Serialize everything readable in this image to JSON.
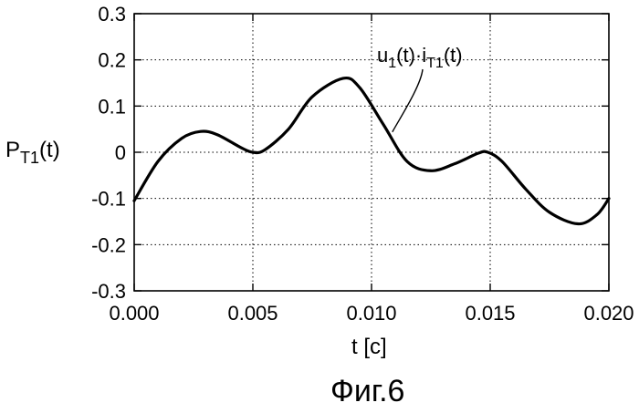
{
  "chart_data": {
    "type": "line",
    "xlabel_main": "t",
    "xlabel_unit": "[c]",
    "ylabel_main": "P",
    "ylabel_sub": "T1",
    "ylabel_arg": "(t)",
    "xlim": [
      0.0,
      0.02
    ],
    "ylim": [
      -0.3,
      0.3
    ],
    "x_ticks": [
      0.0,
      0.005,
      0.01,
      0.015,
      0.02
    ],
    "x_tick_labels": [
      "0.000",
      "0.005",
      "0.010",
      "0.015",
      "0.020"
    ],
    "y_ticks": [
      0.3,
      0.2,
      0.1,
      0.0,
      -0.1,
      -0.2,
      -0.3
    ],
    "y_tick_labels": [
      "0.3",
      "0.2",
      "0.1",
      "0",
      "-0.1",
      "-0.2",
      "-0.3"
    ],
    "grid": true,
    "series": [
      {
        "name": "u1(t)·iT1(t)",
        "x": [
          0.0,
          0.001,
          0.002,
          0.0028,
          0.0035,
          0.0045,
          0.005,
          0.0055,
          0.0065,
          0.0075,
          0.0088,
          0.0095,
          0.0105,
          0.0115,
          0.0125,
          0.0135,
          0.0145,
          0.0149,
          0.0155,
          0.0165,
          0.0175,
          0.0187,
          0.0195,
          0.02
        ],
        "y": [
          -0.105,
          -0.02,
          0.03,
          0.045,
          0.038,
          0.01,
          0.0,
          0.005,
          0.05,
          0.12,
          0.16,
          0.14,
          0.06,
          -0.02,
          -0.04,
          -0.025,
          -0.002,
          0.0,
          -0.02,
          -0.08,
          -0.13,
          -0.155,
          -0.135,
          -0.1
        ]
      }
    ],
    "annotation": {
      "text_u": "u",
      "sub_u": "1",
      "text_mid": "(t)·i",
      "sub_i": "T1",
      "text_end": "(t)",
      "points_to_x": 0.0108
    }
  },
  "caption": "Фиг.6"
}
